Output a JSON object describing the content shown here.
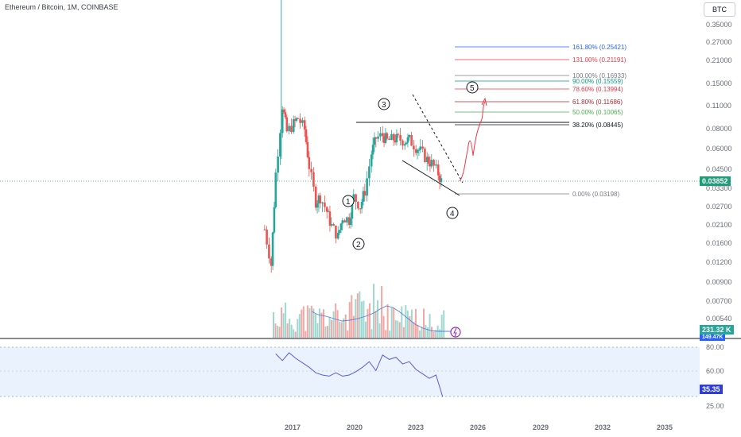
{
  "header": {
    "title": "Ethereum / Bitcoin, 1M, COINBASE",
    "currency_button": "BTC"
  },
  "price_axis": {
    "ticks": [
      "0.35000",
      "0.27000",
      "0.21000",
      "0.15000",
      "0.11000",
      "0.08000",
      "0.06000",
      "0.04500",
      "0.03300",
      "0.02700",
      "0.02100",
      "0.01600",
      "0.01200",
      "0.00900",
      "0.00700",
      "0.00540"
    ],
    "last_price": "0.03852",
    "last_price_color": "#1e9e78"
  },
  "volume": {
    "label": "231.32 K",
    "sub_label": "149.47K"
  },
  "rsi": {
    "ticks": [
      "80.00",
      "60.00",
      "25.00"
    ],
    "value": "35.35"
  },
  "time_axis": {
    "labels": [
      "2017",
      "2020",
      "2023",
      "2026",
      "2029",
      "2032",
      "2035"
    ]
  },
  "fib_levels": [
    {
      "label": "161.80% (0.25421)",
      "color": "#2962ff"
    },
    {
      "label": "131.00% (0.21191)",
      "color": "#f23645"
    },
    {
      "label": "100.00% (0.16933)",
      "color": "#787b86"
    },
    {
      "label": "90.00% (0.15559)",
      "color": "#089981"
    },
    {
      "label": "78.60% (0.13994)",
      "color": "#f23645"
    },
    {
      "label": "61.80% (0.11686)",
      "color": "#b22833"
    },
    {
      "label": "50.00% (0.10065)",
      "color": "#4caf50"
    },
    {
      "label": "38.20% (0.08445)",
      "color": "#131722"
    },
    {
      "label": "0.00% (0.03198)",
      "color": "#787b86"
    }
  ],
  "wave_labels": [
    "1",
    "2",
    "3",
    "4",
    "5"
  ],
  "chart_data": {
    "type": "line",
    "title": "Ethereum / Bitcoin, 1M, COINBASE",
    "price_scale": "log",
    "x_range": [
      2016.5,
      2035.5
    ],
    "y_range": [
      0.0048,
      0.4
    ],
    "x": [
      2016.6,
      2016.9,
      2017.1,
      2017.4,
      2017.6,
      2017.9,
      2018.1,
      2018.4,
      2018.6,
      2018.9,
      2019.1,
      2019.4,
      2019.6,
      2019.9,
      2020.1,
      2020.4,
      2020.6,
      2020.9,
      2021.1,
      2021.4,
      2021.6,
      2021.9,
      2022.1,
      2022.4,
      2022.6,
      2022.9,
      2023.1,
      2023.4,
      2023.6,
      2023.9,
      2024.1,
      2024.4,
      2024.6
    ],
    "close": [
      0.02,
      0.012,
      0.045,
      0.12,
      0.082,
      0.092,
      0.1,
      0.085,
      0.05,
      0.03,
      0.032,
      0.026,
      0.021,
      0.018,
      0.024,
      0.023,
      0.032,
      0.028,
      0.035,
      0.06,
      0.075,
      0.078,
      0.072,
      0.074,
      0.074,
      0.072,
      0.073,
      0.066,
      0.062,
      0.055,
      0.052,
      0.045,
      0.038
    ],
    "rsi_x": [
      2017.1,
      2017.4,
      2017.7,
      2018.0,
      2018.3,
      2018.6,
      2018.9,
      2019.2,
      2019.5,
      2019.8,
      2020.1,
      2020.4,
      2020.7,
      2021.0,
      2021.3,
      2021.6,
      2021.9,
      2022.2,
      2022.5,
      2022.8,
      2023.1,
      2023.4,
      2023.7,
      2024.0,
      2024.3,
      2024.6
    ],
    "rsi": [
      74,
      68,
      75,
      70,
      66,
      62,
      57,
      55,
      54,
      57,
      54,
      55,
      58,
      62,
      67,
      59,
      73,
      69,
      71,
      65,
      67,
      60,
      56,
      52,
      55,
      35.35
    ]
  }
}
